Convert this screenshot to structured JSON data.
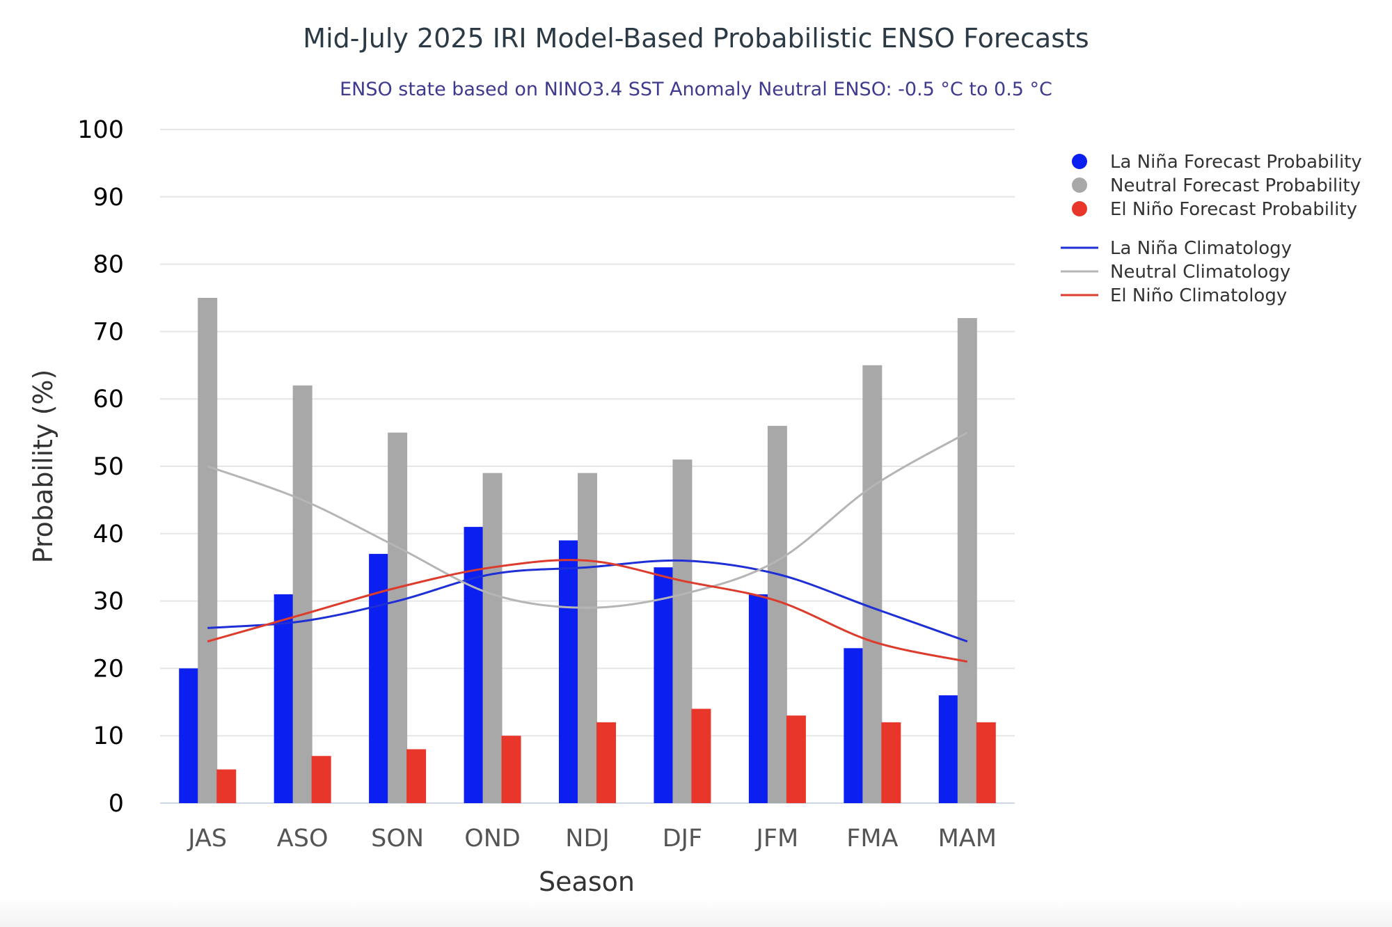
{
  "chart_data": {
    "type": "bar",
    "title": "Mid-July 2025 IRI Model-Based Probabilistic ENSO Forecasts",
    "subtitle": "ENSO state based on NINO3.4 SST Anomaly Neutral ENSO: -0.5 °C to 0.5 °C",
    "xlabel": "Season",
    "ylabel": "Probability (%)",
    "ylim": [
      0,
      100
    ],
    "yticks": [
      0,
      10,
      20,
      30,
      40,
      50,
      60,
      70,
      80,
      90,
      100
    ],
    "grid": true,
    "legend_position": "right",
    "categories": [
      "JAS",
      "ASO",
      "SON",
      "OND",
      "NDJ",
      "DJF",
      "JFM",
      "FMA",
      "MAM"
    ],
    "series": [
      {
        "name": "La Niña Forecast Probability",
        "kind": "bar",
        "color": "#0a1ff0",
        "values": [
          20,
          31,
          37,
          41,
          39,
          35,
          31,
          23,
          16
        ]
      },
      {
        "name": "Neutral Forecast Probability",
        "kind": "bar",
        "color": "#a8a8a8",
        "values": [
          75,
          62,
          55,
          49,
          49,
          51,
          56,
          65,
          72
        ]
      },
      {
        "name": "El Niño Forecast Probability",
        "kind": "bar",
        "color": "#e8372a",
        "values": [
          5,
          7,
          8,
          10,
          12,
          14,
          13,
          12,
          12
        ]
      },
      {
        "name": "La Niña Climatology",
        "kind": "line",
        "color": "#1f2fd6",
        "values": [
          26,
          27,
          30,
          34,
          35,
          36,
          34,
          29,
          24
        ]
      },
      {
        "name": "Neutral Climatology",
        "kind": "line",
        "color": "#b5b5b5",
        "values": [
          50,
          45,
          38,
          31,
          29,
          31,
          36,
          47,
          55
        ]
      },
      {
        "name": "El Niño Climatology",
        "kind": "line",
        "color": "#dd3b2c",
        "values": [
          24,
          28,
          32,
          35,
          36,
          33,
          30,
          24,
          21
        ]
      }
    ]
  }
}
